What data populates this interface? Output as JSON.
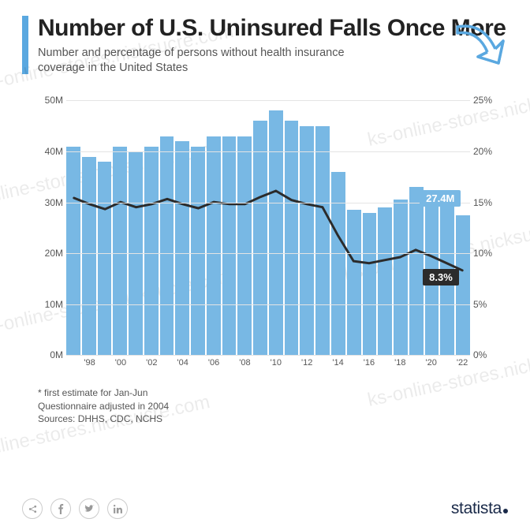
{
  "title": "Number of U.S. Uninsured Falls Once More",
  "subtitle": "Number and percentage of persons without health insurance coverage in the United States",
  "arrow_color": "#5aa8e0",
  "chart": {
    "type": "bar+line",
    "background_color": "#ffffff",
    "grid_color": "#e4e4e4",
    "bar_color": "#78b8e4",
    "line_color": "#2b2b2b",
    "line_width": 3,
    "left_axis": {
      "max": 50,
      "ticks": [
        "0M",
        "10M",
        "20M",
        "30M",
        "40M",
        "50M"
      ],
      "fontsize": 12,
      "color": "#555555"
    },
    "right_axis": {
      "max": 25,
      "ticks": [
        "0%",
        "5%",
        "10%",
        "15%",
        "20%",
        "25%"
      ],
      "fontsize": 12,
      "color": "#555555"
    },
    "years": [
      "'97",
      "'98",
      "'99",
      "'00",
      "'01",
      "'02",
      "'03",
      "'04",
      "'05",
      "'06",
      "'07",
      "'08",
      "'09",
      "'10",
      "'11",
      "'12",
      "'13",
      "'14",
      "'15",
      "'16",
      "'17",
      "'18",
      "'19",
      "'20",
      "'21",
      "'22"
    ],
    "x_labels_shown": [
      "'98",
      "'00",
      "'02",
      "'04",
      "'06",
      "'08",
      "'10",
      "'12",
      "'14",
      "'16",
      "'18",
      "'20",
      "'22"
    ],
    "bars_values": [
      41,
      39,
      38,
      41,
      40,
      41,
      43,
      42,
      41,
      43,
      43,
      43,
      46,
      48,
      46,
      45,
      45,
      36,
      28.5,
      28,
      29,
      30.5,
      33,
      31.5,
      30,
      27.4
    ],
    "line_values": [
      15.4,
      14.8,
      14.3,
      15.0,
      14.5,
      14.8,
      15.3,
      14.8,
      14.4,
      15.0,
      14.8,
      14.8,
      15.5,
      16.1,
      15.2,
      14.8,
      14.5,
      11.7,
      9.2,
      9.0,
      9.3,
      9.6,
      10.3,
      9.7,
      9.0,
      8.3
    ],
    "callouts": {
      "bar_last": {
        "text": "27.4M",
        "bg": "#78b8e4"
      },
      "line_last": {
        "text": "8.3%",
        "bg": "#2b2b2b"
      }
    }
  },
  "footnotes": {
    "line1": "* first estimate for Jan-Jun",
    "line2": "Questionnaire adjusted in 2004",
    "line3": "Sources: DHHS, CDC, NCHS"
  },
  "brand": "statista",
  "watermark": "ks-online-stores.nicksucre.com"
}
